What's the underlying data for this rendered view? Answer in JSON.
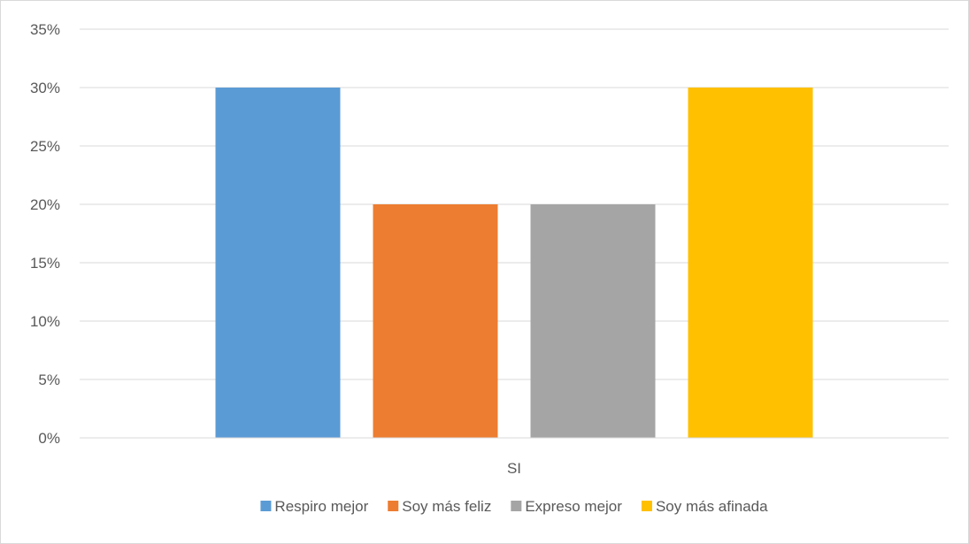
{
  "chart_data": {
    "type": "bar",
    "categories": [
      "SI"
    ],
    "series": [
      {
        "name": "Respiro mejor",
        "values": [
          0.3
        ],
        "color": "#5B9BD5"
      },
      {
        "name": "Soy más feliz",
        "values": [
          0.2
        ],
        "color": "#ED7D31"
      },
      {
        "name": "Expreso mejor",
        "values": [
          0.2
        ],
        "color": "#A5A5A5"
      },
      {
        "name": "Soy más afinada",
        "values": [
          0.3
        ],
        "color": "#FFC000"
      }
    ],
    "title": "",
    "xlabel": "",
    "ylabel": "",
    "ylim": [
      0,
      0.35
    ],
    "yticks": [
      "0%",
      "5%",
      "10%",
      "15%",
      "20%",
      "25%",
      "30%",
      "35%"
    ],
    "grid": true,
    "legend_position": "bottom",
    "gridline_color": "#D9D9D9"
  }
}
